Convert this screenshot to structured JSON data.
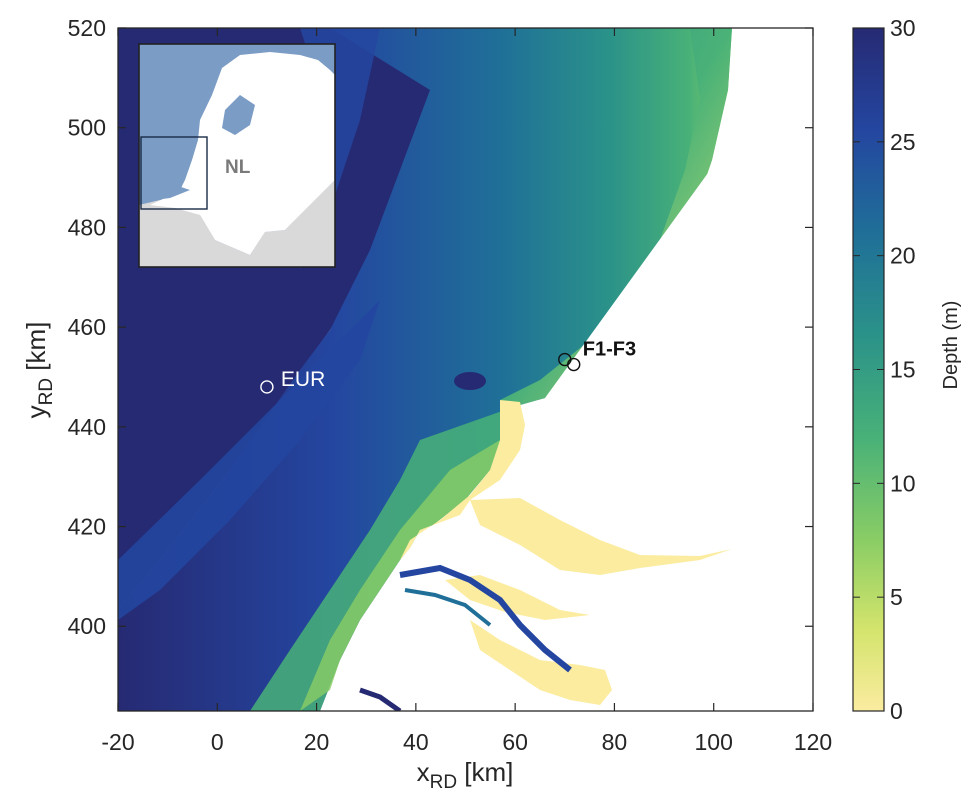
{
  "map": {
    "x_axis": {
      "label_main": "x",
      "label_sub": "RD",
      "label_unit": " [km]",
      "range": [
        -20,
        120
      ],
      "ticks": [
        "-20",
        "0",
        "20",
        "40",
        "60",
        "80",
        "100",
        "120"
      ]
    },
    "y_axis": {
      "label_main": "y",
      "label_sub": "RD",
      "label_unit": " [km]",
      "range": [
        383,
        520
      ],
      "ticks": [
        "400",
        "420",
        "440",
        "460",
        "480",
        "500",
        "520"
      ]
    },
    "stations": [
      {
        "name": "EUR",
        "x": 10,
        "y": 448,
        "label": "EUR"
      },
      {
        "name": "F1",
        "x": 70,
        "y": 453.5
      },
      {
        "name": "F3",
        "x": 71.8,
        "y": 452.5
      }
    ],
    "station_group_label": "F1-F3",
    "inset": {
      "label": "NL",
      "sea_color": "#7b9cc4",
      "land_color": "#ffffff",
      "neighbor_color": "#d9d9d9"
    }
  },
  "colorbar": {
    "label": "Depth (m)",
    "range": [
      0,
      30
    ],
    "ticks": [
      "0",
      "5",
      "10",
      "15",
      "20",
      "25",
      "30"
    ],
    "colors": [
      "#fbeca0",
      "#d3e46c",
      "#8acd65",
      "#48b178",
      "#2b9289",
      "#1f6f98",
      "#2446a0",
      "#262a73"
    ]
  }
}
